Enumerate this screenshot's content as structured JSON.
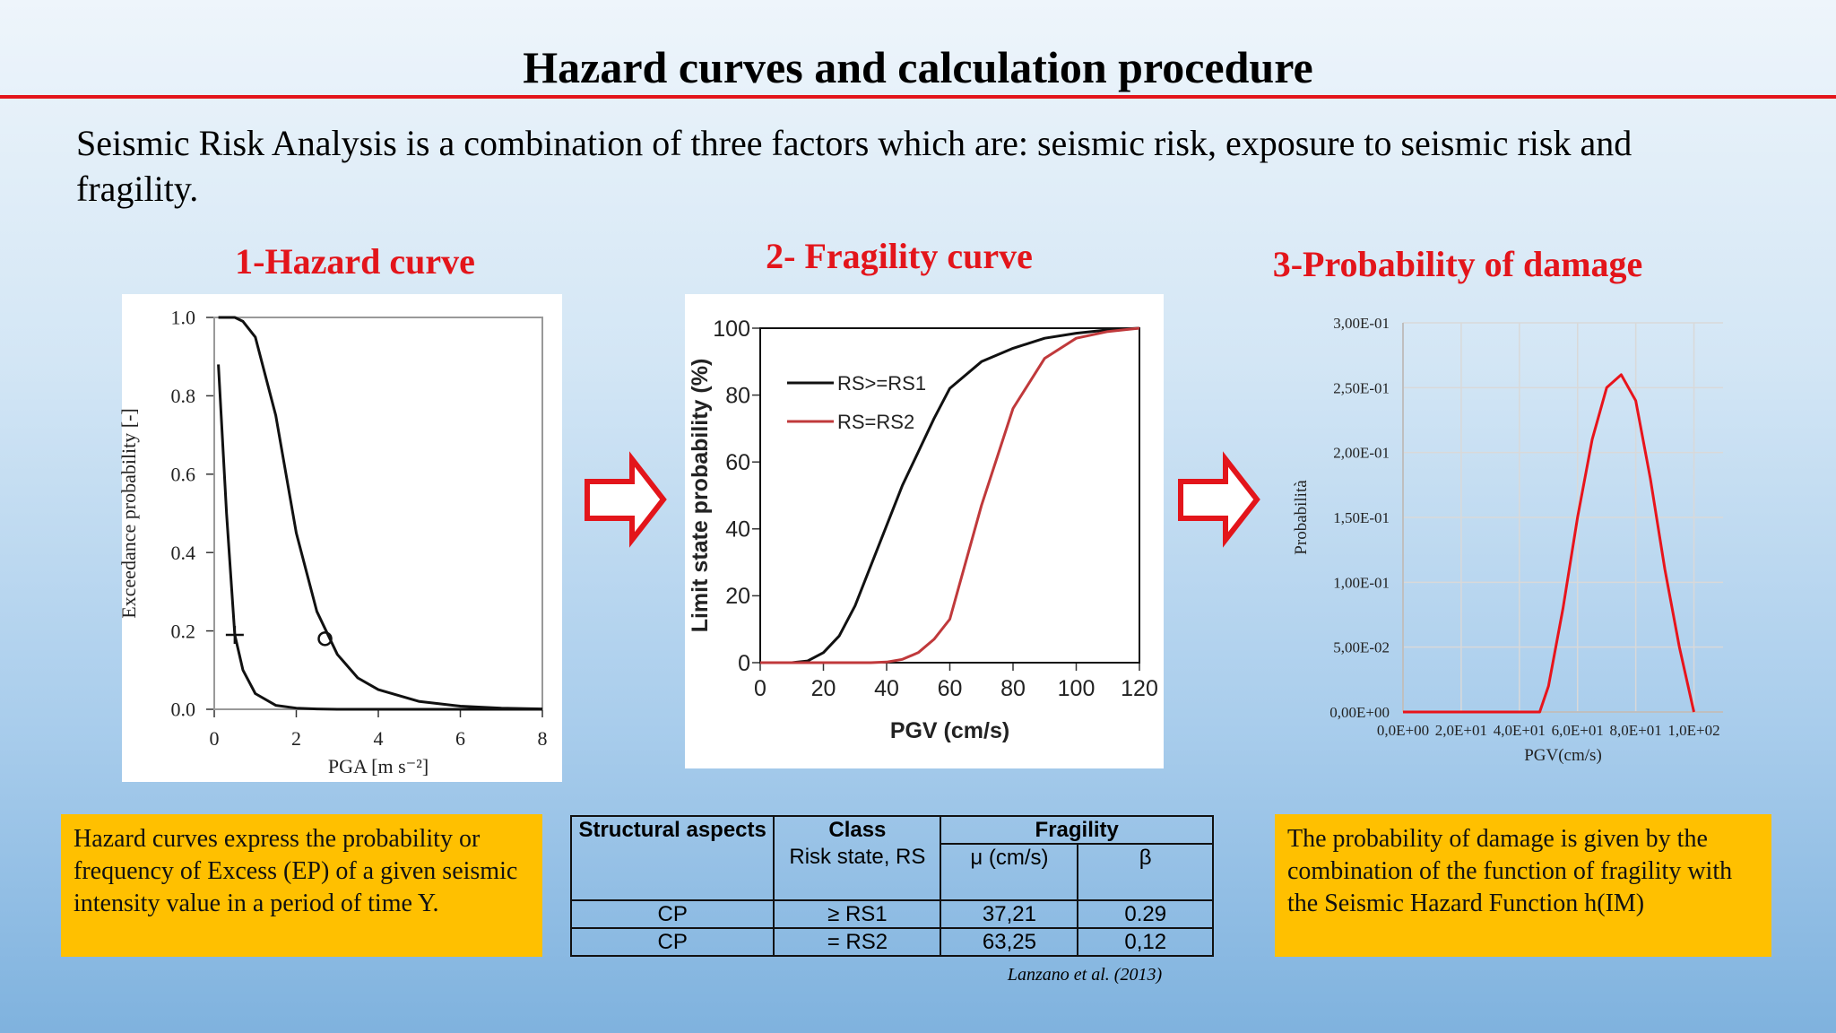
{
  "title": "Hazard curves and calculation procedure",
  "intro": "Seismic Risk Analysis is a combination of three factors which are: seismic risk, exposure to seismic risk and fragility.",
  "chart_data": [
    {
      "type": "line",
      "title": "1-Hazard curve",
      "xlabel": "PGA [m s⁻²]",
      "ylabel": "Exceedance probability [-]",
      "x": [
        0.1,
        0.3,
        0.5,
        0.7,
        1,
        1.5,
        2,
        2.5,
        3,
        3.5,
        4,
        5,
        6,
        7,
        8
      ],
      "series": [
        {
          "color": "#111111",
          "values": [
            1.0,
            1.0,
            1.0,
            0.99,
            0.95,
            0.75,
            0.45,
            0.25,
            0.14,
            0.08,
            0.05,
            0.02,
            0.008,
            0.003,
            0.001
          ]
        },
        {
          "color": "#111111",
          "values": [
            0.88,
            0.5,
            0.19,
            0.1,
            0.04,
            0.01,
            0.003,
            0.001,
            0,
            0,
            0,
            0,
            0,
            0,
            0
          ]
        }
      ],
      "markers": [
        {
          "x": 0.5,
          "y": 0.19,
          "symbol": "plus"
        },
        {
          "x": 2.7,
          "y": 0.18,
          "symbol": "circle"
        }
      ],
      "xlim": [
        0,
        8
      ],
      "ylim": [
        0,
        1
      ],
      "xticks": [
        0,
        2,
        4,
        6,
        8
      ],
      "yticks": [
        {
          "value": 0,
          "label": "0.0"
        },
        0.2,
        0.4,
        0.6,
        0.8,
        {
          "value": 1,
          "label": "1.0"
        }
      ],
      "grid": false
    },
    {
      "type": "line",
      "title": "2- Fragility curve",
      "xlabel": "PGV (cm/s)",
      "ylabel": "Limit state probability (%)",
      "x": [
        0,
        10,
        15,
        20,
        25,
        30,
        35,
        40,
        45,
        50,
        55,
        60,
        70,
        80,
        90,
        100,
        110,
        120
      ],
      "series": [
        {
          "name": "RS>=RS1",
          "color": "#111111",
          "values": [
            0,
            0,
            0.5,
            3,
            8,
            17,
            29,
            41,
            53,
            63,
            73,
            82,
            90,
            94,
            97,
            98.5,
            99.5,
            100
          ]
        },
        {
          "name": "RS=RS2",
          "color": "#c0393b",
          "values": [
            0,
            0,
            0,
            0,
            0,
            0,
            0,
            0.2,
            1,
            3,
            7,
            13,
            47,
            76,
            91,
            97,
            99,
            100
          ]
        }
      ],
      "legend": "upper left",
      "xlim": [
        0,
        120
      ],
      "ylim": [
        0,
        100
      ],
      "xticks": [
        0,
        20,
        40,
        60,
        80,
        100,
        120
      ],
      "yticks": [
        0,
        20,
        40,
        60,
        80,
        100
      ],
      "grid": false
    },
    {
      "type": "line",
      "title": "3-Probability of damage",
      "xlabel": "PGV(cm/s)",
      "ylabel": "Probabilità",
      "x": [
        0,
        10,
        20,
        30,
        40,
        45,
        47,
        50,
        55,
        60,
        65,
        70,
        75,
        80,
        85,
        90,
        95,
        100
      ],
      "series": [
        {
          "color": "#e8141b",
          "values": [
            0,
            0,
            0,
            0,
            0,
            0,
            0,
            0.02,
            0.08,
            0.15,
            0.21,
            0.25,
            0.26,
            0.24,
            0.18,
            0.11,
            0.05,
            0
          ]
        }
      ],
      "xlim": [
        0,
        110
      ],
      "ylim": [
        0,
        0.3
      ],
      "xticks": [
        {
          "value": 0,
          "label": "0,0E+00"
        },
        {
          "value": 20,
          "label": "2,0E+01"
        },
        {
          "value": 40,
          "label": "4,0E+01"
        },
        {
          "value": 60,
          "label": "6,0E+01"
        },
        {
          "value": 80,
          "label": "8,0E+01"
        },
        {
          "value": 100,
          "label": "1,0E+02"
        }
      ],
      "yticks": [
        {
          "value": 0,
          "label": "0,00E+00"
        },
        {
          "value": 0.05,
          "label": "5,00E-02"
        },
        {
          "value": 0.1,
          "label": "1,00E-01"
        },
        {
          "value": 0.15,
          "label": "1,50E-01"
        },
        {
          "value": 0.2,
          "label": "2,00E-01"
        },
        {
          "value": 0.25,
          "label": "2,50E-01"
        },
        {
          "value": 0.3,
          "label": "3,00E-01"
        }
      ],
      "grid": true
    }
  ],
  "notes": {
    "hazard": "Hazard curves express the probability or frequency of Excess (EP) of a given seismic intensity value in a period of time Y.",
    "damage": "The probability of damage is given by the combination of the function of fragility with the Seismic Hazard Function h(IM)"
  },
  "table": {
    "header": [
      "Structural aspects",
      "Class",
      "Fragility"
    ],
    "subheader": [
      "Risk state, RS",
      "μ (cm/s)",
      "β"
    ],
    "rows": [
      [
        "CP",
        "≥ RS1",
        "37,21",
        "0.29"
      ],
      [
        "CP",
        "= RS2",
        "63,25",
        "0,12"
      ]
    ]
  },
  "citation": "Lanzano et al. (2013)"
}
